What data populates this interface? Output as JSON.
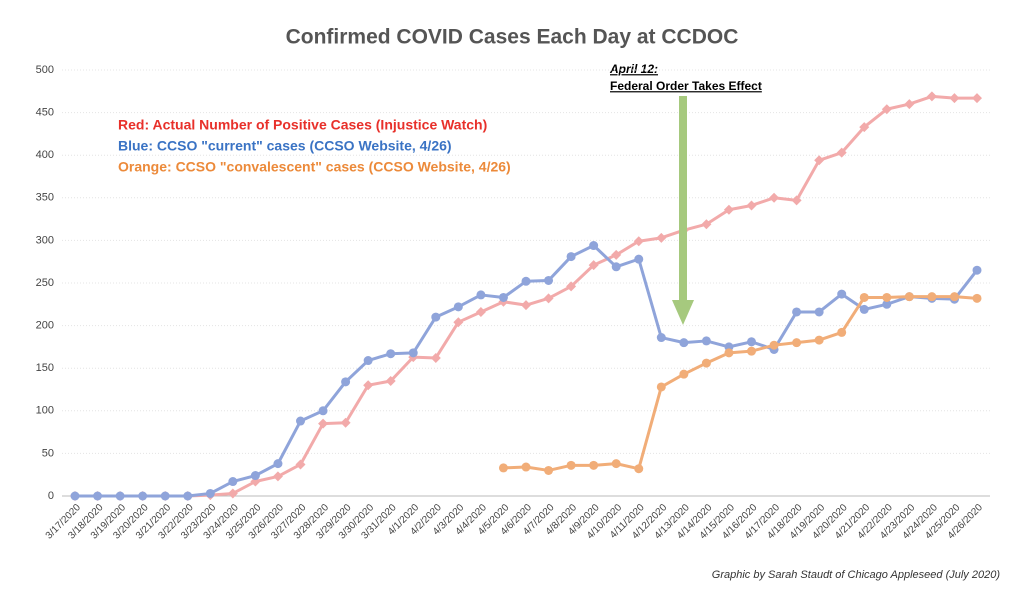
{
  "chart_data": {
    "type": "line",
    "title": "Confirmed COVID Cases Each Day at CCDOC",
    "credit": "Graphic by Sarah Staudt of Chicago Appleseed (July 2020)",
    "annotation": {
      "title": "April 12:",
      "text": "Federal Order Takes Effect",
      "color": "#a6c97e"
    },
    "categories": [
      "3/17/2020",
      "3/18/2020",
      "3/19/2020",
      "3/20/2020",
      "3/21/2020",
      "3/22/2020",
      "3/23/2020",
      "3/24/2020",
      "3/25/2020",
      "3/26/2020",
      "3/27/2020",
      "3/28/2020",
      "3/29/2020",
      "3/30/2020",
      "3/31/2020",
      "4/1/2020",
      "4/2/2020",
      "4/3/2020",
      "4/4/2020",
      "4/5/2020",
      "4/6/2020",
      "4/7/2020",
      "4/8/2020",
      "4/9/2020",
      "4/10/2020",
      "4/11/2020",
      "4/12/2020",
      "4/13/2020",
      "4/14/2020",
      "4/15/2020",
      "4/16/2020",
      "4/17/2020",
      "4/18/2020",
      "4/19/2020",
      "4/20/2020",
      "4/21/2020",
      "4/22/2020",
      "4/23/2020",
      "4/24/2020",
      "4/25/2020",
      "4/26/2020"
    ],
    "series": [
      {
        "name": "Red: Actual Number of Positive Cases (Injustice Watch)",
        "color": "#f2aaaa",
        "legend_color": "#e8302a",
        "marker": "diamond",
        "values": [
          0,
          0,
          0,
          0,
          0,
          0,
          1,
          3,
          17,
          23,
          37,
          85,
          86,
          130,
          135,
          163,
          162,
          204,
          216,
          228,
          224,
          232,
          246,
          271,
          283,
          299,
          303,
          312,
          319,
          336,
          341,
          350,
          347,
          394,
          403,
          433,
          454,
          460,
          469,
          467,
          467
        ]
      },
      {
        "name": "Blue: CCSO \"current\" cases (CCSO Website, 4/26)",
        "color": "#8fa4da",
        "legend_color": "#3a73c4",
        "marker": "circle",
        "values": [
          0,
          0,
          0,
          0,
          0,
          0,
          3,
          17,
          24,
          38,
          88,
          100,
          134,
          159,
          167,
          168,
          210,
          222,
          236,
          233,
          252,
          253,
          281,
          294,
          269,
          278,
          186,
          180,
          182,
          175,
          181,
          172,
          216,
          216,
          237,
          219,
          225,
          234,
          232,
          231,
          265
        ]
      },
      {
        "name": "Orange: CCSO \"convalescent\" cases (CCSO Website, 4/26)",
        "color": "#f1ad78",
        "legend_color": "#ec8a3a",
        "marker": "circle",
        "values": [
          null,
          null,
          null,
          null,
          null,
          null,
          null,
          null,
          null,
          null,
          null,
          null,
          null,
          null,
          null,
          null,
          null,
          null,
          null,
          33,
          34,
          30,
          36,
          36,
          38,
          32,
          128,
          143,
          156,
          168,
          170,
          177,
          180,
          183,
          192,
          233,
          233,
          234,
          234,
          234,
          232
        ]
      }
    ],
    "ylim": [
      0,
      500
    ],
    "yticks": [
      0,
      50,
      100,
      150,
      200,
      250,
      300,
      350,
      400,
      450,
      500
    ],
    "grid": true
  }
}
